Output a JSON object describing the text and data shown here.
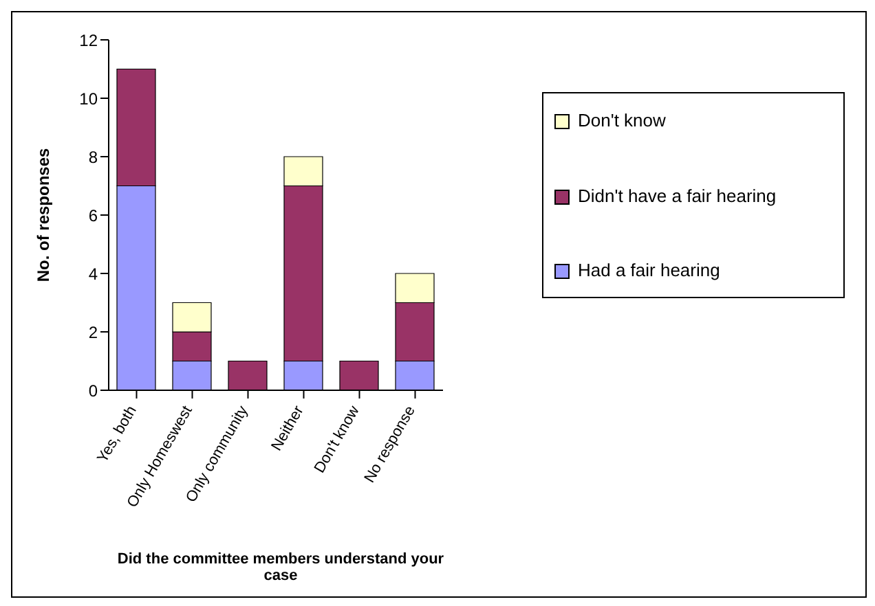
{
  "chart_data": {
    "type": "bar",
    "stacked": true,
    "xlabel": "Did the committee members understand your case",
    "ylabel": "No. of responses",
    "categories": [
      "Yes, both",
      "Only Homeswest",
      "Only community",
      "Neither",
      "Don't know",
      "No response"
    ],
    "series": [
      {
        "name": "Had a fair hearing",
        "color": "#9999ff",
        "values": [
          7,
          1,
          0,
          1,
          0,
          1
        ]
      },
      {
        "name": "Didn't have a fair hearing",
        "color": "#993366",
        "values": [
          4,
          1,
          1,
          6,
          1,
          2
        ]
      },
      {
        "name": "Don't know",
        "color": "#ffffcc",
        "values": [
          0,
          1,
          0,
          1,
          0,
          1
        ]
      }
    ],
    "ylim": [
      0,
      12
    ],
    "yticks": [
      0,
      2,
      4,
      6,
      8,
      10,
      12
    ],
    "legend": "right"
  }
}
